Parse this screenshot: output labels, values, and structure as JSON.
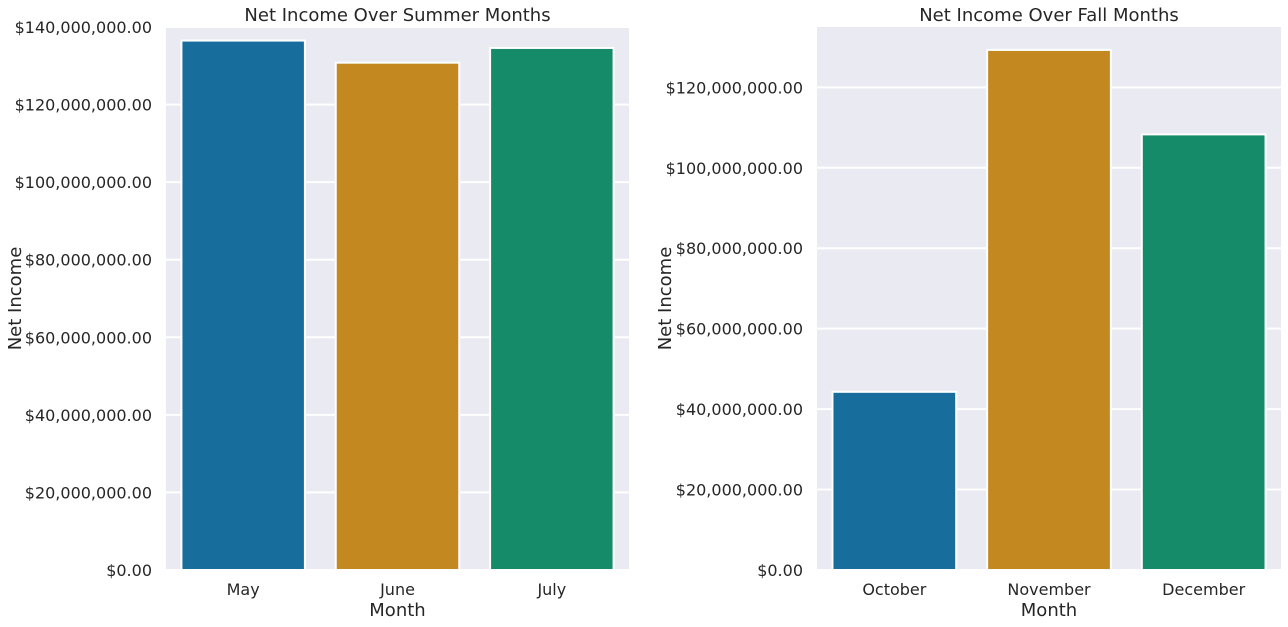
{
  "chart_data": [
    {
      "type": "bar",
      "title": "Net Income Over Summer Months",
      "xlabel": "Month",
      "ylabel": "Net Income",
      "categories": [
        "May",
        "June",
        "July"
      ],
      "values": [
        136500000,
        130800000,
        134600000
      ],
      "ylim": [
        0,
        140000000
      ],
      "yticks": [
        0,
        20000000,
        40000000,
        60000000,
        80000000,
        100000000,
        120000000,
        140000000
      ],
      "ytick_labels": [
        "$0.00",
        "$20,000,000.00",
        "$40,000,000.00",
        "$60,000,000.00",
        "$80,000,000.00",
        "$100,000,000.00",
        "$120,000,000.00",
        "$140,000,000.00"
      ],
      "colors": [
        "#176d9c",
        "#c38820",
        "#158b6a"
      ],
      "grid": true,
      "background": "#eaeaf2"
    },
    {
      "type": "bar",
      "title": "Net Income Over Fall Months",
      "xlabel": "Month",
      "ylabel": "Net Income",
      "categories": [
        "October",
        "November",
        "December"
      ],
      "values": [
        44300000,
        129300000,
        108300000
      ],
      "ylim": [
        0,
        135000000
      ],
      "yticks": [
        0,
        20000000,
        40000000,
        60000000,
        80000000,
        100000000,
        120000000
      ],
      "ytick_labels": [
        "$0.00",
        "$20,000,000.00",
        "$40,000,000.00",
        "$60,000,000.00",
        "$80,000,000.00",
        "$100,000,000.00",
        "$120,000,000.00"
      ],
      "colors": [
        "#176d9c",
        "#c38820",
        "#158b6a"
      ],
      "grid": true,
      "background": "#eaeaf2"
    }
  ]
}
